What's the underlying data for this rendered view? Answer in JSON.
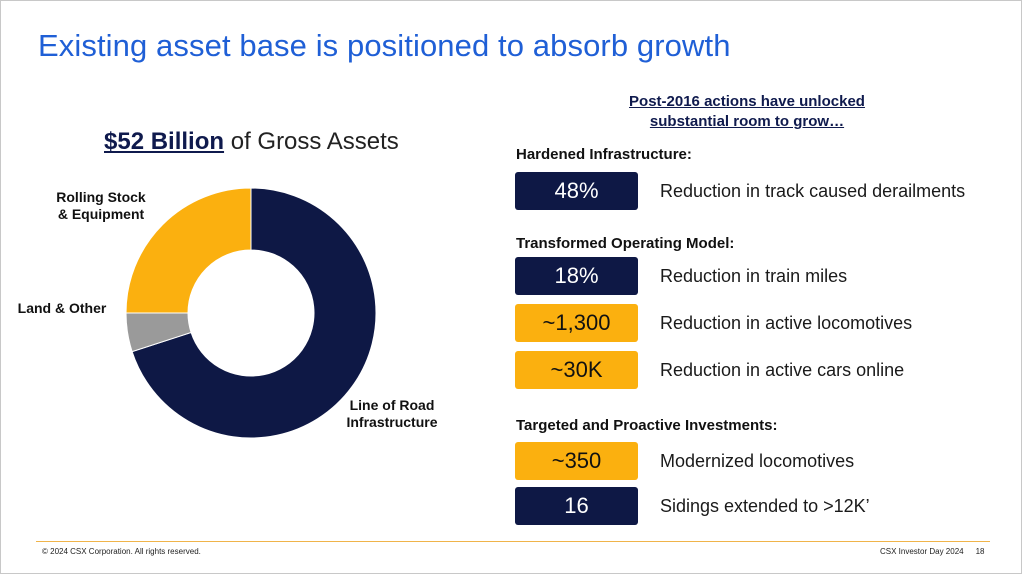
{
  "slide": {
    "title": "Existing asset base is positioned to absorb growth"
  },
  "assets": {
    "amount": "$52 Billion",
    "suffix": " of Gross Assets"
  },
  "chart_data": {
    "type": "pie",
    "title": "$52 Billion of Gross Assets",
    "categories": [
      "Line of Road Infrastructure",
      "Land & Other",
      "Rolling Stock & Equipment"
    ],
    "label_lines": [
      [
        "Line of Road",
        "Infrastructure"
      ],
      [
        "Land & Other"
      ],
      [
        "Rolling Stock",
        "& Equipment"
      ]
    ],
    "values": [
      70,
      5,
      25
    ],
    "colors": [
      "#0e1845",
      "#9a9a9a",
      "#fbb00f"
    ],
    "donut": true,
    "start_angle_deg": 0,
    "direction": "clockwise"
  },
  "right": {
    "heading_line1": "Post-2016 actions have unlocked",
    "heading_line2": "substantial room to grow…",
    "sections": [
      {
        "title": "Hardened Infrastructure:"
      },
      {
        "title": "Transformed Operating Model:"
      },
      {
        "title": "Targeted and Proactive Investments:"
      }
    ],
    "stats": [
      {
        "value": "48%",
        "label": "Reduction in track caused derailments",
        "style": "navy"
      },
      {
        "value": "18%",
        "label": "Reduction in train miles",
        "style": "navy"
      },
      {
        "value": "~1,300",
        "label": "Reduction in active locomotives",
        "style": "gold"
      },
      {
        "value": "~30K",
        "label": "Reduction in active cars online",
        "style": "gold"
      },
      {
        "value": "~350",
        "label": "Modernized locomotives",
        "style": "gold"
      },
      {
        "value": "16",
        "label": "Sidings extended to >12K’",
        "style": "navy"
      }
    ]
  },
  "footer": {
    "copyright": "© 2024 CSX Corporation. All rights reserved.",
    "event": "CSX Investor Day 2024",
    "page": "18"
  },
  "colors": {
    "title_blue": "#1f5fd6",
    "navy": "#0e1845",
    "gold": "#fbb00f",
    "gray": "#9a9a9a"
  }
}
